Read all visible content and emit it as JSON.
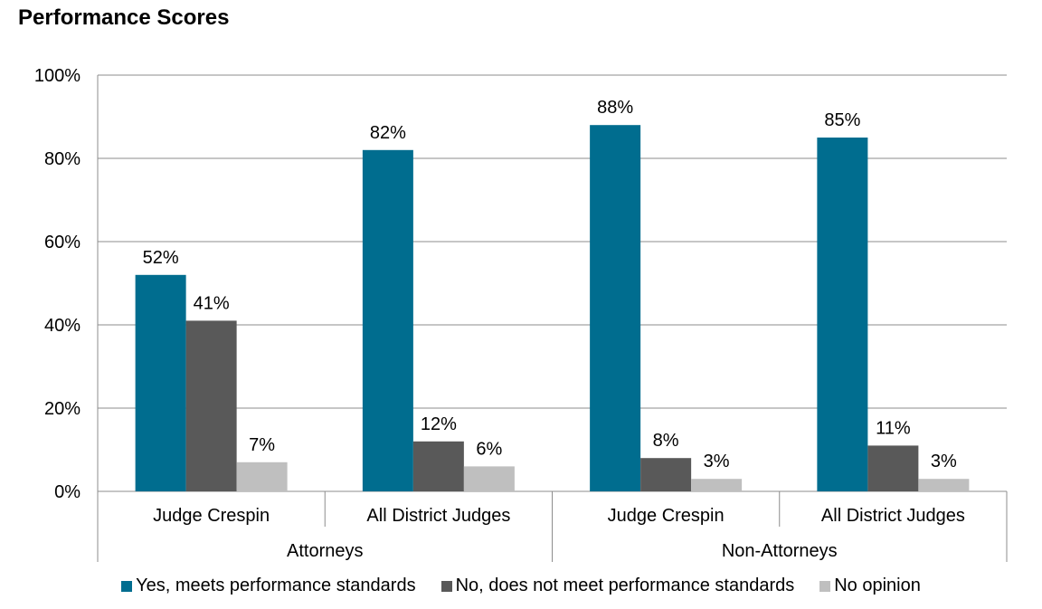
{
  "chart_data": {
    "type": "bar",
    "title": "Performance Scores",
    "xlabel": "",
    "ylabel": "",
    "ylim": [
      0,
      100
    ],
    "yticks": [
      "0%",
      "20%",
      "40%",
      "60%",
      "80%",
      "100%"
    ],
    "ytick_values": [
      0,
      20,
      40,
      60,
      80,
      100
    ],
    "categories": [
      "Judge Crespin",
      "All District Judges",
      "Judge Crespin",
      "All District Judges"
    ],
    "groups": [
      {
        "label": "Attorneys",
        "categories": [
          "Judge Crespin",
          "All District Judges"
        ]
      },
      {
        "label": "Non-Attorneys",
        "categories": [
          "Judge Crespin",
          "All District Judges"
        ]
      }
    ],
    "series": [
      {
        "name": "Yes, meets performance standards",
        "color": "#006D8F",
        "values": [
          52,
          82,
          88,
          85
        ],
        "labels": [
          "52%",
          "82%",
          "88%",
          "85%"
        ]
      },
      {
        "name": "No, does not meet performance standards",
        "color": "#595959",
        "values": [
          41,
          12,
          8,
          11
        ],
        "labels": [
          "41%",
          "12%",
          "8%",
          "11%"
        ]
      },
      {
        "name": "No opinion",
        "color": "#BFBFBF",
        "values": [
          7,
          6,
          3,
          3
        ],
        "labels": [
          "7%",
          "6%",
          "3%",
          "3%"
        ]
      }
    ],
    "grid": true,
    "legend": "bottom"
  }
}
